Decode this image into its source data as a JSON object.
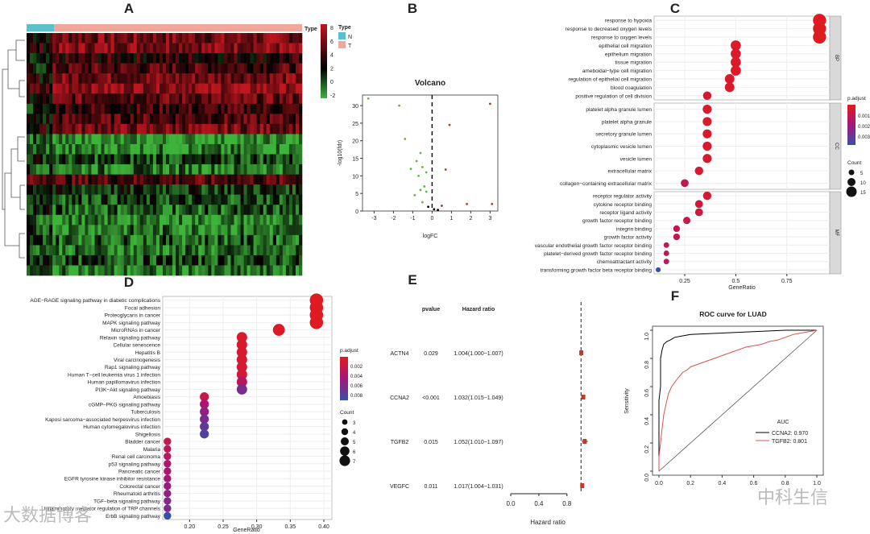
{
  "panels": {
    "A": "A",
    "B": "B",
    "C": "C",
    "D": "D",
    "E": "E",
    "F": "F"
  },
  "watermarks": {
    "left": "大数据博客",
    "right": "中科生信"
  },
  "chart_data": [
    {
      "id": "A",
      "type": "heatmap",
      "annotation_label": "Type",
      "legend_title": "Type",
      "groups": [
        {
          "name": "N",
          "color": "#5bc0c9"
        },
        {
          "name": "T",
          "color": "#f0a89c"
        }
      ],
      "colorbar": {
        "ticks": [
          8,
          6,
          4,
          2,
          0,
          -2
        ],
        "colors": [
          "#c0161f",
          "#000000",
          "#3eb33a"
        ]
      }
    },
    {
      "id": "B",
      "type": "scatter",
      "title": "Volcano",
      "xlabel": "logFC",
      "ylabel": "-log10(fdr)",
      "xticks": [
        -3,
        -2,
        -1,
        0,
        1,
        2,
        3
      ],
      "yticks": [
        0,
        5,
        10,
        15,
        20,
        25,
        30
      ],
      "xlim": [
        -3.6,
        3.4
      ],
      "ylim": [
        0,
        33
      ],
      "points": [
        {
          "x": -3.3,
          "y": 32,
          "c": "#6ab04c"
        },
        {
          "x": -1.7,
          "y": 30,
          "c": "#6ab04c"
        },
        {
          "x": -1.4,
          "y": 20.5,
          "c": "#6ab04c"
        },
        {
          "x": -0.6,
          "y": 16.5,
          "c": "#6ab04c"
        },
        {
          "x": -0.8,
          "y": 14.2,
          "c": "#6ab04c"
        },
        {
          "x": -0.5,
          "y": 12.5,
          "c": "#6ab04c"
        },
        {
          "x": -1.1,
          "y": 12,
          "c": "#6ab04c"
        },
        {
          "x": -0.3,
          "y": 11,
          "c": "#6ab04c"
        },
        {
          "x": -0.7,
          "y": 10,
          "c": "#6ab04c"
        },
        {
          "x": -0.4,
          "y": 7,
          "c": "#6ab04c"
        },
        {
          "x": -0.6,
          "y": 6,
          "c": "#6ab04c"
        },
        {
          "x": -0.3,
          "y": 5.5,
          "c": "#6ab04c"
        },
        {
          "x": -0.9,
          "y": 4.5,
          "c": "#6ab04c"
        },
        {
          "x": -0.5,
          "y": 2.5,
          "c": "#6ab04c"
        },
        {
          "x": -0.2,
          "y": 1.2,
          "c": "#000000"
        },
        {
          "x": 0.1,
          "y": 0.5,
          "c": "#000000"
        },
        {
          "x": 0.3,
          "y": 0.3,
          "c": "#000000"
        },
        {
          "x": 3.0,
          "y": 30.5,
          "c": "#b03a2e"
        },
        {
          "x": 0.9,
          "y": 24.5,
          "c": "#b03a2e"
        },
        {
          "x": 0.7,
          "y": 11.8,
          "c": "#b03a2e"
        },
        {
          "x": 0.5,
          "y": 1.5,
          "c": "#b03a2e"
        },
        {
          "x": 1.8,
          "y": 2,
          "c": "#b03a2e"
        },
        {
          "x": 3.1,
          "y": 2,
          "c": "#b03a2e"
        }
      ]
    },
    {
      "id": "C",
      "type": "scatter",
      "subtype": "dotplot",
      "xlabel": "GeneRatio",
      "xticks": [
        0.25,
        0.5,
        0.75
      ],
      "xlim": [
        0.1,
        0.96
      ],
      "legend_color_title": "p.adjust",
      "legend_color_ticks": [
        "0.001",
        "0.002",
        "0.003"
      ],
      "legend_size_title": "Count",
      "legend_size_ticks": [
        5,
        10,
        15
      ],
      "facets": [
        {
          "label": "BP",
          "terms": [
            {
              "term": "response to hypoxia",
              "x": 0.91,
              "count": 17,
              "p": 0.0001
            },
            {
              "term": "response to decreased oxygen levels",
              "x": 0.91,
              "count": 17,
              "p": 0.0001
            },
            {
              "term": "response to oxygen levels",
              "x": 0.91,
              "count": 17,
              "p": 0.0001
            },
            {
              "term": "epithelial cell migration",
              "x": 0.5,
              "count": 12,
              "p": 0.0002
            },
            {
              "term": "epithelium migration",
              "x": 0.5,
              "count": 12,
              "p": 0.0002
            },
            {
              "term": "tissue migration",
              "x": 0.5,
              "count": 12,
              "p": 0.0002
            },
            {
              "term": "ameboidal−type cell migration",
              "x": 0.5,
              "count": 12,
              "p": 0.0002
            },
            {
              "term": "regulation of epithelial cell migration",
              "x": 0.47,
              "count": 11,
              "p": 0.0003
            },
            {
              "term": "blood coagulation",
              "x": 0.47,
              "count": 11,
              "p": 0.0003
            },
            {
              "term": "positive regulation of cell division",
              "x": 0.36,
              "count": 9,
              "p": 0.0004
            }
          ]
        },
        {
          "label": "CC",
          "terms": [
            {
              "term": "platelet alpha granule lumen",
              "x": 0.36,
              "count": 10,
              "p": 0.0003
            },
            {
              "term": "platelet alpha granule",
              "x": 0.36,
              "count": 10,
              "p": 0.0003
            },
            {
              "term": "secretory granule lumen",
              "x": 0.36,
              "count": 10,
              "p": 0.0003
            },
            {
              "term": "cytoplasmic vesicle lumen",
              "x": 0.36,
              "count": 10,
              "p": 0.0003
            },
            {
              "term": "vesicle lumen",
              "x": 0.36,
              "count": 10,
              "p": 0.0003
            },
            {
              "term": "extracellular matrix",
              "x": 0.32,
              "count": 9,
              "p": 0.0004
            },
            {
              "term": "collagen−containing extracellular matrix",
              "x": 0.25,
              "count": 8,
              "p": 0.001
            }
          ]
        },
        {
          "label": "MF",
          "terms": [
            {
              "term": "receptor regulator activity",
              "x": 0.36,
              "count": 9,
              "p": 0.0004
            },
            {
              "term": "cytokine receptor binding",
              "x": 0.32,
              "count": 8,
              "p": 0.0006
            },
            {
              "term": "receptor ligand activity",
              "x": 0.32,
              "count": 8,
              "p": 0.0006
            },
            {
              "term": "growth factor receptor binding",
              "x": 0.26,
              "count": 7,
              "p": 0.0008
            },
            {
              "term": "integrin binding",
              "x": 0.21,
              "count": 6,
              "p": 0.0009
            },
            {
              "term": "growth factor activity",
              "x": 0.21,
              "count": 6,
              "p": 0.0009
            },
            {
              "term": "vascular endothelial growth factor receptor binding",
              "x": 0.16,
              "count": 4,
              "p": 0.001
            },
            {
              "term": "platelet−derived growth factor receptor binding",
              "x": 0.16,
              "count": 4,
              "p": 0.001
            },
            {
              "term": "chemoattractant activity",
              "x": 0.16,
              "count": 4,
              "p": 0.001
            },
            {
              "term": "transforming growth factor beta receptor binding",
              "x": 0.12,
              "count": 3,
              "p": 0.0035
            }
          ]
        }
      ]
    },
    {
      "id": "D",
      "type": "scatter",
      "subtype": "dotplot",
      "xlabel": "GeneRatio",
      "xticks": [
        0.2,
        0.25,
        0.3,
        0.35,
        0.4
      ],
      "xlim": [
        0.16,
        0.4
      ],
      "legend_color_title": "p.adjust",
      "legend_color_ticks": [
        "0.002",
        "0.004",
        "0.006",
        "0.008"
      ],
      "legend_size_title": "Count",
      "legend_size_ticks": [
        3,
        4,
        5,
        6,
        7
      ],
      "terms": [
        {
          "term": "AGE−RAGE signaling pathway in diabetic complications",
          "x": 0.389,
          "count": 7,
          "p": 0.0003
        },
        {
          "term": "Focal adhesion",
          "x": 0.389,
          "count": 7,
          "p": 0.0003
        },
        {
          "term": "Proteoglycans in cancer",
          "x": 0.389,
          "count": 7,
          "p": 0.0003
        },
        {
          "term": "MAPK signaling pathway",
          "x": 0.389,
          "count": 7,
          "p": 0.0003
        },
        {
          "term": "MicroRNAs in cancer",
          "x": 0.333,
          "count": 6,
          "p": 0.0005
        },
        {
          "term": "Relaxin signaling pathway",
          "x": 0.278,
          "count": 5,
          "p": 0.0008
        },
        {
          "term": "Cellular senescence",
          "x": 0.278,
          "count": 5,
          "p": 0.0008
        },
        {
          "term": "Hepatitis B",
          "x": 0.278,
          "count": 5,
          "p": 0.0009
        },
        {
          "term": "Viral carcinogenesis",
          "x": 0.278,
          "count": 5,
          "p": 0.0009
        },
        {
          "term": "Rap1 signaling pathway",
          "x": 0.278,
          "count": 5,
          "p": 0.001
        },
        {
          "term": "Human T−cell leukemia virus 1 infection",
          "x": 0.278,
          "count": 5,
          "p": 0.0012
        },
        {
          "term": "Human papillomavirus infection",
          "x": 0.278,
          "count": 5,
          "p": 0.003
        },
        {
          "term": "PI3K−Akt signaling pathway",
          "x": 0.278,
          "count": 5,
          "p": 0.006
        },
        {
          "term": "Amoebiasis",
          "x": 0.222,
          "count": 4,
          "p": 0.002
        },
        {
          "term": "cGMP−PKG signaling pathway",
          "x": 0.222,
          "count": 4,
          "p": 0.004
        },
        {
          "term": "Tuberculosis",
          "x": 0.222,
          "count": 4,
          "p": 0.005
        },
        {
          "term": "Kaposi sarcoma−associated herpesvirus infection",
          "x": 0.222,
          "count": 4,
          "p": 0.006
        },
        {
          "term": "Human cytomegalovirus infection",
          "x": 0.222,
          "count": 4,
          "p": 0.007
        },
        {
          "term": "Shigellosis",
          "x": 0.222,
          "count": 4,
          "p": 0.0075
        },
        {
          "term": "Bladder cancer",
          "x": 0.167,
          "count": 3,
          "p": 0.002
        },
        {
          "term": "Malaria",
          "x": 0.167,
          "count": 3,
          "p": 0.0025
        },
        {
          "term": "Renal cell carcinoma",
          "x": 0.167,
          "count": 3,
          "p": 0.003
        },
        {
          "term": "p53 signaling pathway",
          "x": 0.167,
          "count": 3,
          "p": 0.0035
        },
        {
          "term": "Pancreatic cancer",
          "x": 0.167,
          "count": 3,
          "p": 0.0038
        },
        {
          "term": "EGFR tyrosine kinase inhibitor resistance",
          "x": 0.167,
          "count": 3,
          "p": 0.004
        },
        {
          "term": "Colorectal cancer",
          "x": 0.167,
          "count": 3,
          "p": 0.0045
        },
        {
          "term": "Rheumatoid arthritis",
          "x": 0.167,
          "count": 3,
          "p": 0.005
        },
        {
          "term": "TGF−beta signaling pathway",
          "x": 0.167,
          "count": 3,
          "p": 0.0055
        },
        {
          "term": "Inflammatory mediator regulation of TRP channels",
          "x": 0.167,
          "count": 3,
          "p": 0.006
        },
        {
          "term": "ErbB signaling pathway",
          "x": 0.167,
          "count": 3,
          "p": 0.0085
        }
      ]
    },
    {
      "id": "E",
      "type": "table",
      "subtype": "forest",
      "headers": [
        "pvalue",
        "Hazard ratio"
      ],
      "rows": [
        {
          "gene": "ACTN4",
          "pvalue": "0.029",
          "hr_text": "1.004(1.000−1.007)",
          "hr": 1.004,
          "lo": 1.0,
          "hi": 1.007
        },
        {
          "gene": "CCNA2",
          "pvalue": "<0.001",
          "hr_text": "1.032(1.015−1.049)",
          "hr": 1.032,
          "lo": 1.015,
          "hi": 1.049
        },
        {
          "gene": "TGFB2",
          "pvalue": "0.015",
          "hr_text": "1.052(1.010−1.097)",
          "hr": 1.052,
          "lo": 1.01,
          "hi": 1.097
        },
        {
          "gene": "VEGFC",
          "pvalue": "0.011",
          "hr_text": "1.017(1.004−1.031)",
          "hr": 1.017,
          "lo": 1.004,
          "hi": 1.031
        }
      ],
      "xlabel": "Hazard ratio",
      "xticks": [
        "0.0",
        "0.4",
        "0.8"
      ],
      "xlim": [
        0,
        1.1
      ],
      "ref": 1.0
    },
    {
      "id": "F",
      "type": "line",
      "title": "ROC curve for LUAD",
      "xlabel": "1−Specificity",
      "ylabel": "Sensitivity",
      "xticks": [
        "0.0",
        "0.2",
        "0.4",
        "0.6",
        "0.8",
        "1.0"
      ],
      "yticks": [
        "0.0",
        "0.2",
        "0.4",
        "0.6",
        "0.8",
        "1.0"
      ],
      "legend_title": "AUC",
      "series": [
        {
          "name": "CCNA2: 0.970",
          "color": "#000000",
          "x": [
            0,
            0,
            0.01,
            0.01,
            0.02,
            0.03,
            0.05,
            0.07,
            0.1,
            0.15,
            0.2,
            0.3,
            0.4,
            0.5,
            0.6,
            0.7,
            0.8,
            0.9,
            1.0
          ],
          "y": [
            0,
            0.5,
            0.6,
            0.8,
            0.86,
            0.9,
            0.92,
            0.93,
            0.95,
            0.96,
            0.97,
            0.975,
            0.98,
            0.985,
            0.99,
            0.995,
            1,
            1,
            1
          ]
        },
        {
          "name": "TGFB2: 0.801",
          "color": "#d9534f",
          "x": [
            0,
            0,
            0.02,
            0.03,
            0.05,
            0.06,
            0.08,
            0.1,
            0.12,
            0.15,
            0.18,
            0.2,
            0.25,
            0.3,
            0.35,
            0.4,
            0.45,
            0.5,
            0.55,
            0.6,
            0.65,
            0.7,
            0.75,
            0.8,
            0.85,
            0.9,
            0.95,
            1.0
          ],
          "y": [
            0,
            0.1,
            0.3,
            0.4,
            0.5,
            0.55,
            0.6,
            0.63,
            0.66,
            0.7,
            0.72,
            0.74,
            0.76,
            0.78,
            0.8,
            0.82,
            0.84,
            0.86,
            0.88,
            0.89,
            0.9,
            0.92,
            0.93,
            0.95,
            0.97,
            0.98,
            0.99,
            1.0
          ]
        }
      ]
    }
  ]
}
